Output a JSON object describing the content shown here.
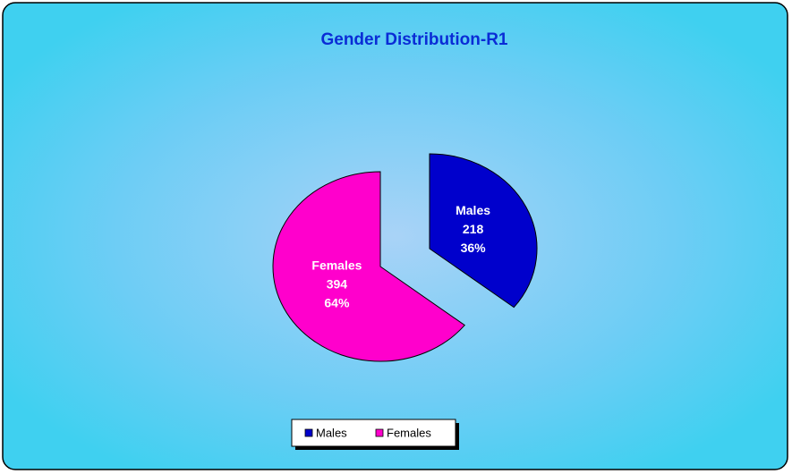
{
  "chart_data": {
    "type": "pie",
    "title": "Gender Distribution-R1",
    "categories": [
      "Males",
      "Females"
    ],
    "values": [
      218,
      394
    ],
    "percent_labels": [
      "36%",
      "64%"
    ],
    "series": [
      {
        "name": "Males",
        "color": "#0000cc"
      },
      {
        "name": "Females",
        "color": "#ff00cc"
      }
    ],
    "legend": "bottom"
  }
}
